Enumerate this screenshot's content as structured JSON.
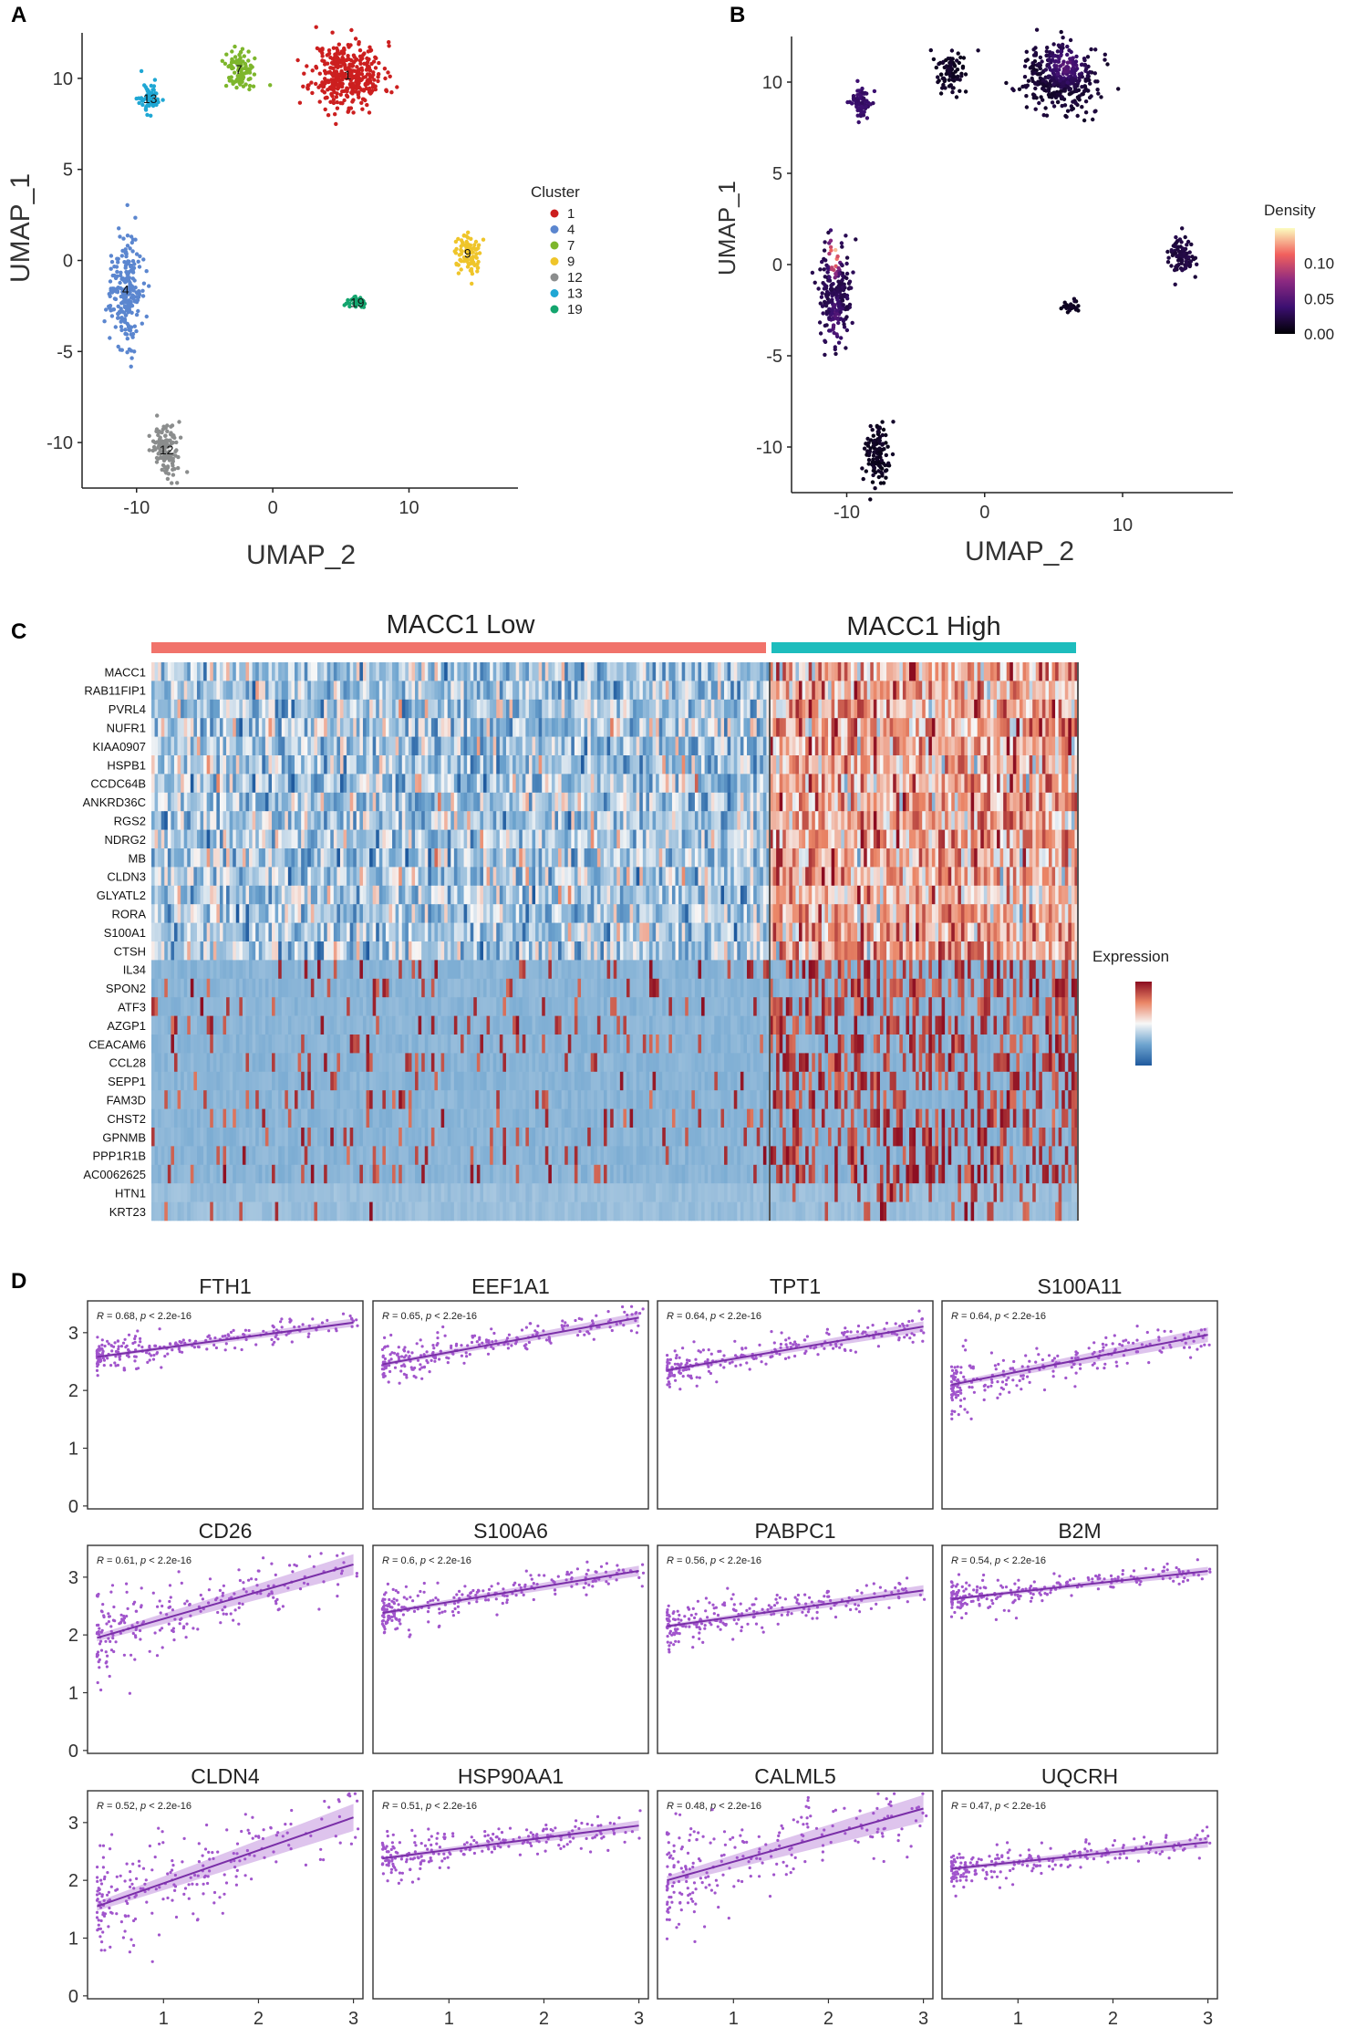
{
  "panel_labels": [
    "A",
    "B",
    "C",
    "D"
  ],
  "chart_data": [
    {
      "id": "A",
      "type": "scatter",
      "title": "",
      "xlabel": "UMAP_2",
      "ylabel": "UMAP_1",
      "x_ticks": [
        "-10",
        "0",
        "10"
      ],
      "y_ticks": [
        "10",
        "5",
        "0",
        "-5",
        "-10"
      ],
      "xlim": [
        -14,
        18
      ],
      "ylim": [
        -12.5,
        12.5
      ],
      "legend_title": "Cluster",
      "legend_position": "right",
      "clusters": [
        {
          "name": "1",
          "color": "#cc1f1f",
          "label": "1",
          "center": [
            5.5,
            10.2
          ],
          "spread": [
            2.6,
            1.8
          ],
          "n": 380
        },
        {
          "name": "4",
          "color": "#5b86cf",
          "label": "4",
          "center": [
            -10.8,
            -1.6
          ],
          "spread": [
            1.1,
            3.0
          ],
          "n": 240
        },
        {
          "name": "7",
          "color": "#7db62c",
          "label": "7",
          "center": [
            -2.5,
            10.5
          ],
          "spread": [
            1.0,
            1.1
          ],
          "n": 90
        },
        {
          "name": "9",
          "color": "#efc52a",
          "label": "9",
          "center": [
            14.3,
            0.4
          ],
          "spread": [
            0.9,
            1.1
          ],
          "n": 90
        },
        {
          "name": "12",
          "color": "#8b8d8d",
          "label": "12",
          "center": [
            -7.8,
            -10.4
          ],
          "spread": [
            1.0,
            1.5
          ],
          "n": 120
        },
        {
          "name": "13",
          "color": "#1fa7d4",
          "label": "13",
          "center": [
            -9.0,
            8.9
          ],
          "spread": [
            0.8,
            0.8
          ],
          "n": 70
        },
        {
          "name": "19",
          "color": "#14a56e",
          "label": "19",
          "center": [
            6.2,
            -2.3
          ],
          "spread": [
            0.7,
            0.25
          ],
          "n": 30
        }
      ]
    },
    {
      "id": "B",
      "type": "scatter",
      "title": "",
      "xlabel": "UMAP_2",
      "ylabel": "UMAP_1",
      "x_ticks": [
        "-10",
        "0",
        "10"
      ],
      "y_ticks": [
        "10",
        "5",
        "0",
        "-5",
        "-10"
      ],
      "xlim": [
        -14,
        18
      ],
      "ylim": [
        -12.5,
        12.5
      ],
      "legend_title": "Density",
      "legend_position": "right",
      "colorbar_ticks": [
        "0.10",
        "0.05",
        "0.00"
      ],
      "colorbar_range": [
        0.0,
        0.15
      ]
    },
    {
      "id": "C",
      "type": "heatmap",
      "title": "",
      "groups": [
        {
          "name": "MACC1  Low",
          "color": "#f1736b",
          "n_cells": 190
        },
        {
          "name": "MACC1  High",
          "color": "#1dbdbd",
          "n_cells": 95
        }
      ],
      "legend_title": "Expression",
      "legend_position": "right",
      "genes": [
        "MACC1",
        "RAB11FIP1",
        "PVRL4",
        "NUFR1",
        "KIAA0907",
        "HSPB1",
        "CCDC64B",
        "ANKRD36C",
        "RGS2",
        "NDRG2",
        "MB",
        "CLDN3",
        "GLYATL2",
        "RORA",
        "S100A1",
        "CTSH",
        "IL34",
        "SPON2",
        "ATF3",
        "AZGP1",
        "CEACAM6",
        "CCL28",
        "SEPP1",
        "FAM3D",
        "CHST2",
        "GPNMB",
        "PPP1R1B",
        "AC0062625",
        "HTN1",
        "KRT23"
      ]
    },
    {
      "id": "D",
      "type": "scatter",
      "title": "",
      "x_ticks": [
        "1",
        "2",
        "3"
      ],
      "y_ticks": [
        "3",
        "2",
        "1",
        "0"
      ],
      "xlim": [
        0.2,
        3.1
      ],
      "ylim": [
        -0.05,
        3.55
      ],
      "point_color": "#a155cc",
      "line_color": "#7a2fa8",
      "panels": [
        {
          "gene": "FTH1",
          "stat": "0.68",
          "p": "2.2e-16",
          "intercept": 2.58,
          "slope": 0.22,
          "noise": 0.12,
          "band": 0.04
        },
        {
          "gene": "EEF1A1",
          "stat": "0.65",
          "p": "2.2e-16",
          "intercept": 2.45,
          "slope": 0.3,
          "noise": 0.15,
          "band": 0.05
        },
        {
          "gene": "TPT1",
          "stat": "0.64",
          "p": "2.2e-16",
          "intercept": 2.35,
          "slope": 0.28,
          "noise": 0.15,
          "band": 0.05
        },
        {
          "gene": "S100A11",
          "stat": "0.64",
          "p": "2.2e-16",
          "intercept": 2.1,
          "slope": 0.32,
          "noise": 0.2,
          "band": 0.07
        },
        {
          "gene": "CD26",
          "stat": "0.61",
          "p": "2.2e-16",
          "intercept": 1.95,
          "slope": 0.47,
          "noise": 0.3,
          "band": 0.1
        },
        {
          "gene": "S100A6",
          "stat": "0.6",
          "p": "2.2e-16",
          "intercept": 2.38,
          "slope": 0.27,
          "noise": 0.16,
          "band": 0.05
        },
        {
          "gene": "PABPC1",
          "stat": "0.56",
          "p": "2.2e-16",
          "intercept": 2.15,
          "slope": 0.23,
          "noise": 0.17,
          "band": 0.05
        },
        {
          "gene": "B2M",
          "stat": "0.54",
          "p": "2.2e-16",
          "intercept": 2.62,
          "slope": 0.18,
          "noise": 0.12,
          "band": 0.04
        },
        {
          "gene": "CLDN4",
          "stat": "0.52",
          "p": "2.2e-16",
          "intercept": 1.55,
          "slope": 0.57,
          "noise": 0.4,
          "band": 0.13
        },
        {
          "gene": "HSP90AA1",
          "stat": "0.51",
          "p": "2.2e-16",
          "intercept": 2.38,
          "slope": 0.21,
          "noise": 0.16,
          "band": 0.05
        },
        {
          "gene": "CALML5",
          "stat": "0.48",
          "p": "2.2e-16",
          "intercept": 2.0,
          "slope": 0.46,
          "noise": 0.4,
          "band": 0.13
        },
        {
          "gene": "UQCRH",
          "stat": "0.47",
          "p": "2.2e-16",
          "intercept": 2.2,
          "slope": 0.17,
          "noise": 0.14,
          "band": 0.05
        }
      ]
    }
  ]
}
